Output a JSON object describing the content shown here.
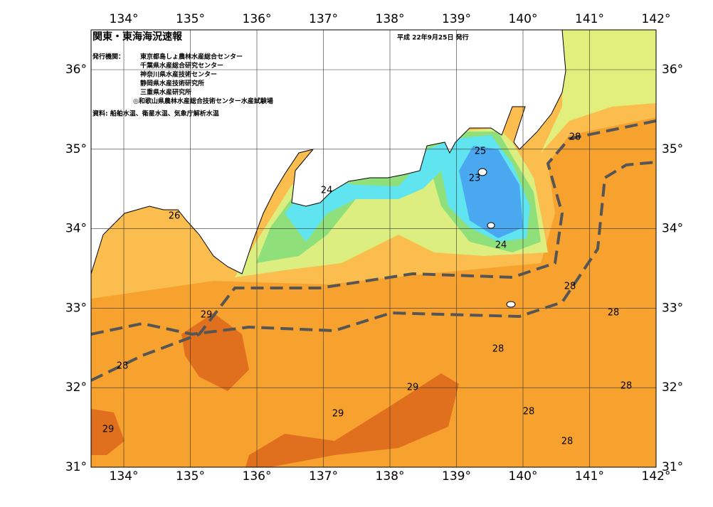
{
  "header": {
    "title": "関東・東海海況速報",
    "date": "平成 22年9月25日 発行"
  },
  "publisher": {
    "label": "発行機関：",
    "agencies": [
      "東京都島しょ農林水産総合センター",
      "千葉県水産総合研究センター",
      "神奈川県水産技術センター",
      "静岡県水産技術研究所",
      "三重県水産研究所",
      "◎和歌山県農林水産総合技術センター水産試験場"
    ]
  },
  "source": "資料: 船舶水温、衛星水温、気象庁解析水温",
  "axes": {
    "lon_labels": [
      "134°",
      "135°",
      "136°",
      "137°",
      "138°",
      "139°",
      "140°",
      "141°",
      "142°"
    ],
    "lat_labels": [
      "36°",
      "35°",
      "34°",
      "33°",
      "32°",
      "31°"
    ]
  },
  "contour_labels": [
    "28",
    "24",
    "25",
    "23",
    "26",
    "24",
    "28",
    "29",
    "28",
    "28",
    "28",
    "29",
    "28",
    "28",
    "29",
    "29",
    "28"
  ]
}
